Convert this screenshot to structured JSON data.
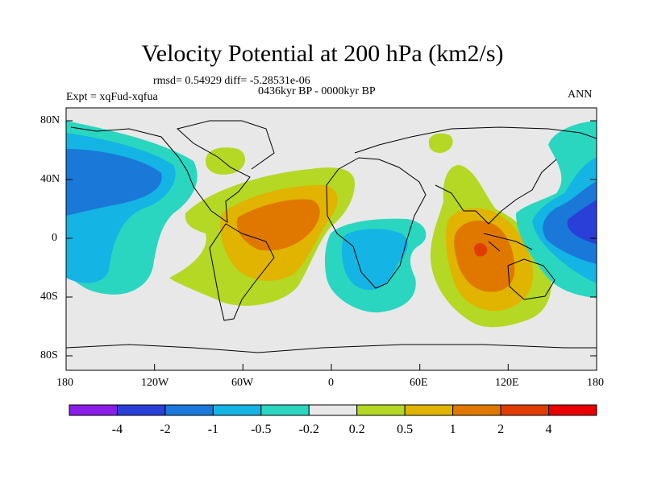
{
  "title": "Velocity Potential at 200 hPa (km2/s)",
  "stats": "rmsd= 0.54929  diff= -5.28531e-06",
  "experiment": "Expt = xqFud-xqfua",
  "period": "0436kyr BP - 0000kyr BP",
  "season": "ANN",
  "lat_ticks": [
    "80N",
    "40N",
    "0",
    "40S",
    "80S"
  ],
  "lon_ticks": [
    "180",
    "120W",
    "60W",
    "0",
    "60E",
    "120E",
    "180"
  ],
  "colorbar": {
    "labels": [
      "-4",
      "-2",
      "-1",
      "-0.5",
      "-0.2",
      "0.2",
      "0.5",
      "1",
      "2",
      "4"
    ],
    "colors": [
      "#8a1ee8",
      "#2a3ed8",
      "#1a78d8",
      "#14b4e4",
      "#2ad6c0",
      "#e8e8e8",
      "#b4d824",
      "#e0b400",
      "#e07800",
      "#e03c00",
      "#e80000"
    ]
  }
}
